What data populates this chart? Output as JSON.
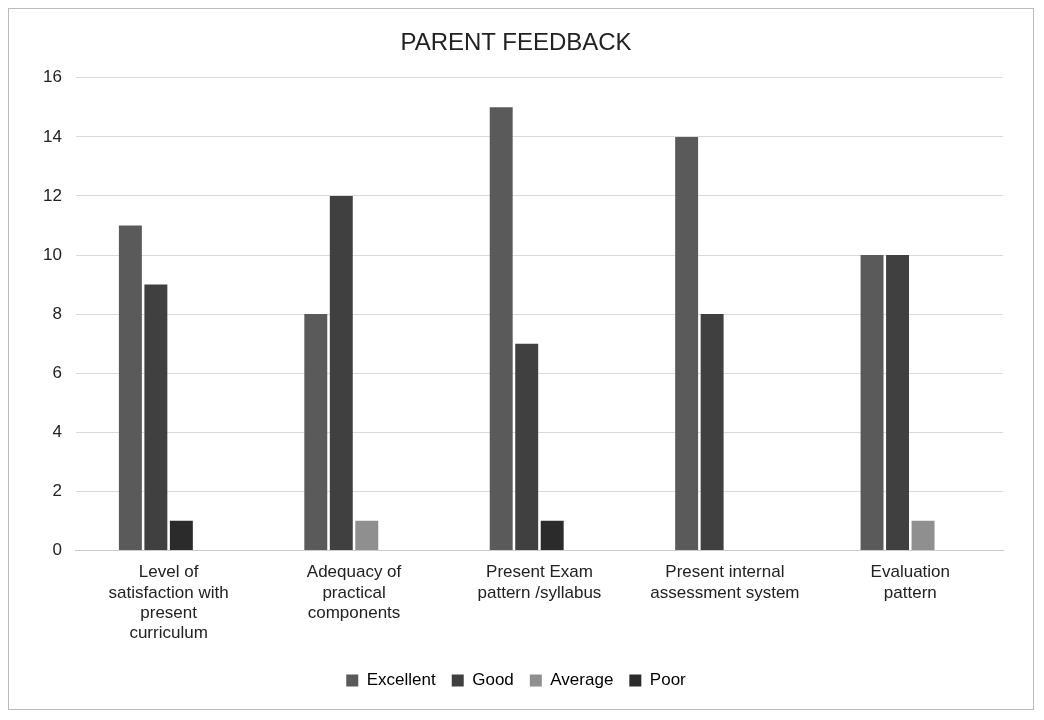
{
  "chart_data": {
    "type": "bar",
    "title": "PARENT FEEDBACK",
    "categories": [
      "Level of satisfaction with present curriculum",
      "Adequacy of practical components",
      "Present Exam pattern /syllabus",
      "Present internal assessment system",
      "Evaluation pattern"
    ],
    "series": [
      {
        "name": "Excellent",
        "color": "#5a5a5a",
        "values": [
          11,
          8,
          15,
          14,
          10
        ]
      },
      {
        "name": "Good",
        "color": "#404040",
        "values": [
          9,
          12,
          7,
          8,
          10
        ]
      },
      {
        "name": "Average",
        "color": "#8f8f8f",
        "colors": [
          "#2b2b2b",
          "#8f8f8f",
          "#2b2b2b",
          "#8f8f8f",
          "#8f8f8f"
        ],
        "values": [
          1,
          1,
          1,
          0,
          1
        ]
      },
      {
        "name": "Poor",
        "color": "#2b2b2b",
        "values": [
          0,
          0,
          0,
          0,
          0
        ]
      }
    ],
    "ylim": [
      0,
      16
    ],
    "yticks": [
      0,
      2,
      4,
      6,
      8,
      10,
      12,
      14,
      16
    ],
    "grid": "y",
    "legend": "bottom"
  }
}
